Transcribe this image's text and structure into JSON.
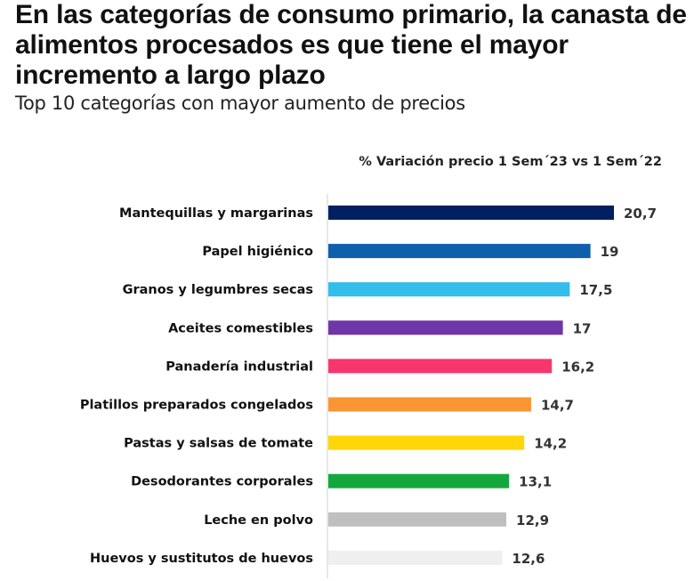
{
  "chart_data": {
    "type": "bar",
    "orientation": "horizontal",
    "title": "En las categorías de consumo primario, la canasta de alimentos procesados es que tiene el mayor incremento a largo plazo",
    "subtitle": "Top 10 categorías con mayor aumento de precios",
    "measure_label": "% Variación precio 1 Sem´23 vs 1 Sem´22",
    "categories": [
      "Mantequillas y margarinas",
      "Papel higiénico",
      "Granos y legumbres secas",
      "Aceites comestibles",
      "Panadería industrial",
      "Platillos preparados congelados",
      "Pastas y salsas de tomate",
      "Desodorantes corporales",
      "Leche en polvo",
      "Huevos y sustitutos de huevos"
    ],
    "values": [
      20.7,
      19,
      17.5,
      17,
      16.2,
      14.7,
      14.2,
      13.1,
      12.9,
      12.6
    ],
    "value_labels": [
      "20,7",
      "19",
      "17,5",
      "17",
      "16,2",
      "14,7",
      "14,2",
      "13,1",
      "12,9",
      "12,6"
    ],
    "colors": [
      "#002060",
      "#0F5FAE",
      "#33BDEB",
      "#6E36A8",
      "#F7366E",
      "#FA9533",
      "#FFD60A",
      "#14A83C",
      "#BFBFBF",
      "#EFEFF1"
    ],
    "grid": false,
    "legend": "none"
  }
}
